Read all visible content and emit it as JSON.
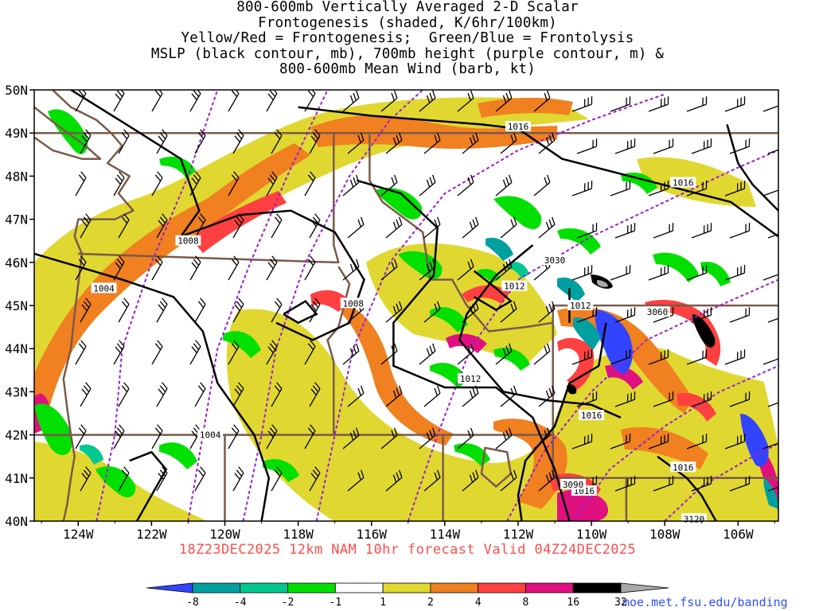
{
  "title": {
    "lines": [
      "800-600mb Vertically Averaged 2-D Scalar",
      "Frontogenesis (shaded, K/6hr/100km)",
      "Yellow/Red = Frontogenesis;  Green/Blue = Frontolysis",
      "MSLP (black contour, mb), 700mb height (purple contour, m) &",
      "800-600mb Mean Wind (barb, kt)"
    ]
  },
  "footer": "18Z23DEC2025 12km NAM 10hr forecast Valid 04Z24DEC2025",
  "source_url": "moe.met.fsu.edu/banding",
  "map": {
    "lat_labels": [
      "50N",
      "49N",
      "48N",
      "47N",
      "46N",
      "45N",
      "44N",
      "43N",
      "42N",
      "41N",
      "40N"
    ],
    "lon_labels": [
      "124W",
      "122W",
      "120W",
      "118W",
      "116W",
      "114W",
      "112W",
      "110W",
      "108W",
      "106W"
    ],
    "lat_range": [
      40,
      50
    ],
    "lon_range": [
      -125.2,
      -104.9
    ],
    "mslp_labels": [
      "1016",
      "1016",
      "1008",
      "1004",
      "1008",
      "1012",
      "1012",
      "1012",
      "1016",
      "1016",
      "1016",
      "1004"
    ],
    "height_labels": [
      "3030",
      "3060",
      "3090",
      "3120"
    ]
  },
  "colorbar": {
    "tick_labels": [
      "-8",
      "-4",
      "-2",
      "-1",
      "1",
      "2",
      "4",
      "8",
      "16",
      "32"
    ],
    "colors": [
      "#3344ff",
      "#00a0a0",
      "#00c890",
      "#00e000",
      "#ffffff",
      "#e0d830",
      "#f08020",
      "#ff4040",
      "#e01080",
      "#000000",
      "#a8a8a8"
    ]
  },
  "colors": {
    "mslp": "#000000",
    "height": "#9a20d0",
    "borders": "#7a5a4a",
    "barbs": "#000000"
  }
}
